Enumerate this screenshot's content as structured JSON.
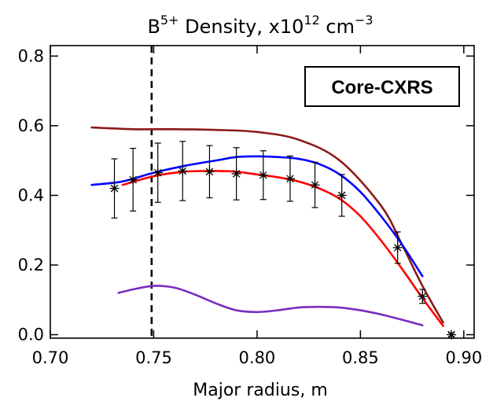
{
  "chart_data": {
    "type": "line",
    "title": {
      "base": "B",
      "superscript": "5+",
      "middle": " Density, x10",
      "exponent": "12",
      "unit": " cm",
      "unit_exponent": "−3"
    },
    "xlabel": "Major radius, m",
    "ylabel": "",
    "xlim": [
      0.7,
      0.905
    ],
    "ylim": [
      -0.01,
      0.83
    ],
    "xticks": [
      0.7,
      0.75,
      0.8,
      0.85,
      0.9
    ],
    "xtick_labels": [
      "0.70",
      "0.75",
      "0.80",
      "0.85",
      "0.90"
    ],
    "yticks": [
      0.0,
      0.2,
      0.4,
      0.6,
      0.8
    ],
    "ytick_labels": [
      "0.0",
      "0.2",
      "0.4",
      "0.6",
      "0.8"
    ],
    "grid": false,
    "legend": false,
    "annotation": {
      "text": "Core-CXRS",
      "position": "top-right"
    },
    "vertical_line": {
      "x": 0.749,
      "style": "dashed",
      "color": "#000000"
    },
    "series": [
      {
        "color": "#8b1a1a",
        "style": "line",
        "x": [
          0.72,
          0.74,
          0.76,
          0.78,
          0.8,
          0.82,
          0.84,
          0.86,
          0.87,
          0.88,
          0.89
        ],
        "y": [
          0.595,
          0.59,
          0.59,
          0.588,
          0.582,
          0.56,
          0.5,
          0.37,
          0.26,
          0.14,
          0.035
        ]
      },
      {
        "color": "#0000ff",
        "style": "line",
        "x": [
          0.72,
          0.735,
          0.75,
          0.765,
          0.78,
          0.79,
          0.8,
          0.81,
          0.82,
          0.83,
          0.84,
          0.85,
          0.86,
          0.87,
          0.88
        ],
        "y": [
          0.43,
          0.44,
          0.465,
          0.485,
          0.5,
          0.51,
          0.512,
          0.51,
          0.505,
          0.49,
          0.46,
          0.41,
          0.34,
          0.26,
          0.168
        ]
      },
      {
        "color": "#ff0000",
        "style": "line",
        "x": [
          0.735,
          0.75,
          0.765,
          0.78,
          0.79,
          0.8,
          0.81,
          0.82,
          0.83,
          0.84,
          0.85,
          0.86,
          0.87,
          0.88,
          0.89
        ],
        "y": [
          0.43,
          0.455,
          0.468,
          0.47,
          0.468,
          0.46,
          0.452,
          0.44,
          0.42,
          0.39,
          0.34,
          0.27,
          0.19,
          0.105,
          0.025
        ]
      },
      {
        "color": "#7b2cbf",
        "style": "line",
        "x": [
          0.733,
          0.74,
          0.75,
          0.76,
          0.77,
          0.78,
          0.79,
          0.8,
          0.81,
          0.82,
          0.83,
          0.84,
          0.85,
          0.86,
          0.87,
          0.88
        ],
        "y": [
          0.12,
          0.13,
          0.14,
          0.135,
          0.115,
          0.09,
          0.07,
          0.065,
          0.07,
          0.078,
          0.08,
          0.078,
          0.07,
          0.058,
          0.043,
          0.027
        ]
      },
      {
        "color": "#000000",
        "style": "errorbar",
        "marker": "asterisk",
        "x": [
          0.731,
          0.74,
          0.752,
          0.764,
          0.777,
          0.79,
          0.803,
          0.816,
          0.828,
          0.841,
          0.868,
          0.88,
          0.894
        ],
        "y": [
          0.42,
          0.445,
          0.465,
          0.47,
          0.468,
          0.462,
          0.458,
          0.448,
          0.43,
          0.4,
          0.25,
          0.11,
          0.0
        ],
        "err": [
          0.085,
          0.09,
          0.085,
          0.085,
          0.075,
          0.075,
          0.07,
          0.065,
          0.065,
          0.06,
          0.045,
          0.02,
          0.005
        ]
      }
    ]
  }
}
